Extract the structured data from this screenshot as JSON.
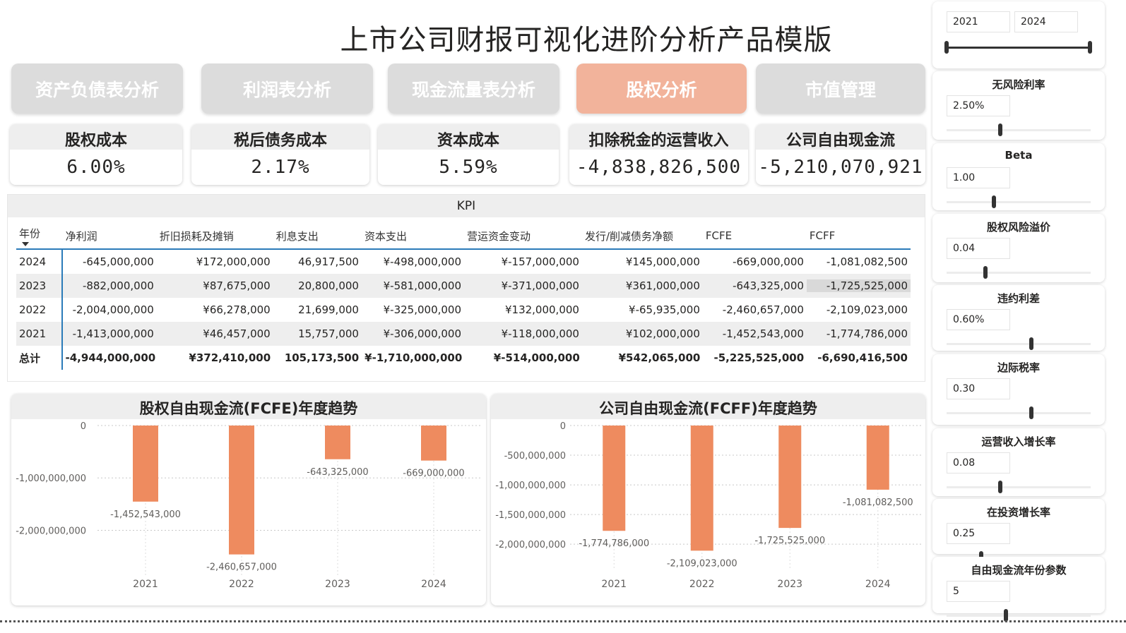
{
  "title": "上市公司财报可视化进阶分析产品模版",
  "nav": [
    {
      "label": "资产负债表分析",
      "active": false
    },
    {
      "label": "利润表分析",
      "active": false
    },
    {
      "label": "现金流量表分析",
      "active": false
    },
    {
      "label": "股权分析",
      "active": true
    },
    {
      "label": "市值管理",
      "active": false
    }
  ],
  "cards": [
    {
      "label": "股权成本",
      "value": "6.00%"
    },
    {
      "label": "税后债务成本",
      "value": "2.17%"
    },
    {
      "label": "资本成本",
      "value": "5.59%"
    },
    {
      "label": "扣除税金的运营收入",
      "value": "-4,838,826,500"
    },
    {
      "label": "公司自由现金流",
      "value": "-5,210,070,921"
    }
  ],
  "kpi": {
    "title": "KPI",
    "columns": [
      "年份",
      "净利润",
      "折旧损耗及摊销",
      "利息支出",
      "资本支出",
      "营运资金变动",
      "发行/削减债务净额",
      "FCFE",
      "FCFF"
    ],
    "rows": [
      [
        "2024",
        "-645,000,000",
        "¥172,000,000",
        "46,917,500",
        "¥-498,000,000",
        "¥-157,000,000",
        "¥145,000,000",
        "-669,000,000",
        "-1,081,082,500"
      ],
      [
        "2023",
        "-882,000,000",
        "¥87,675,000",
        "20,800,000",
        "¥-581,000,000",
        "¥-371,000,000",
        "¥361,000,000",
        "-643,325,000",
        "-1,725,525,000"
      ],
      [
        "2022",
        "-2,004,000,000",
        "¥66,278,000",
        "21,699,000",
        "¥-325,000,000",
        "¥132,000,000",
        "¥-65,935,000",
        "-2,460,657,000",
        "-2,109,023,000"
      ],
      [
        "2021",
        "-1,413,000,000",
        "¥46,457,000",
        "15,757,000",
        "¥-306,000,000",
        "¥-118,000,000",
        "¥102,000,000",
        "-1,452,543,000",
        "-1,774,786,000"
      ]
    ],
    "total": [
      "总计",
      "-4,944,000,000",
      "¥372,410,000",
      "105,173,500",
      "¥-1,710,000,000",
      "¥-514,000,000",
      "¥542,065,000",
      "-5,225,525,000",
      "-6,690,416,500"
    ]
  },
  "chart_data": [
    {
      "type": "bar",
      "title": "股权自由现金流(FCFE)年度趋势",
      "categories": [
        "2021",
        "2022",
        "2023",
        "2024"
      ],
      "values": [
        -1452543000,
        -2460657000,
        -643325000,
        -669000000
      ],
      "value_labels": [
        "-1,452,543,000",
        "-2,460,657,000",
        "-643,325,000",
        "-669,000,000"
      ],
      "yticks": [
        0,
        -1000000000,
        -2000000000
      ],
      "ytick_labels": [
        "0",
        "-1,000,000,000",
        "-2,000,000,000"
      ],
      "ylim": [
        -2600000000,
        0
      ],
      "color": "#ee8b5f",
      "grid": true
    },
    {
      "type": "bar",
      "title": "公司自由现金流(FCFF)年度趋势",
      "categories": [
        "2021",
        "2022",
        "2023",
        "2024"
      ],
      "values": [
        -1774786000,
        -2109023000,
        -1725525000,
        -1081082500
      ],
      "value_labels": [
        "-1,774,786,000",
        "-2,109,023,000",
        "-1,725,525,000",
        "-1,081,082,500"
      ],
      "yticks": [
        0,
        -500000000,
        -1000000000,
        -1500000000,
        -2000000000
      ],
      "ytick_labels": [
        "0",
        "-500,000,000",
        "-1,000,000,000",
        "-1,500,000,000",
        "-2,000,000,000"
      ],
      "ylim": [
        -2200000000,
        0
      ],
      "color": "#ee8b5f",
      "grid": true
    }
  ],
  "year_range": {
    "start": "2021",
    "end": "2024"
  },
  "params": [
    {
      "label": "无风险利率",
      "value": "2.50%",
      "level": 0.37
    },
    {
      "label": "Beta",
      "value": "1.00",
      "level": 0.33
    },
    {
      "label": "股权风险溢价",
      "value": "0.04",
      "level": 0.27
    },
    {
      "label": "违约利差",
      "value": "0.60%",
      "level": 0.59
    },
    {
      "label": "边际税率",
      "value": "0.30",
      "level": 0.59
    },
    {
      "label": "运营收入增长率",
      "value": "0.08",
      "level": 0.37
    },
    {
      "label": "在投资增长率",
      "value": "0.25",
      "level": 0.24
    },
    {
      "label": "自由现金流年份参数",
      "value": "5",
      "level": 0.41
    }
  ]
}
